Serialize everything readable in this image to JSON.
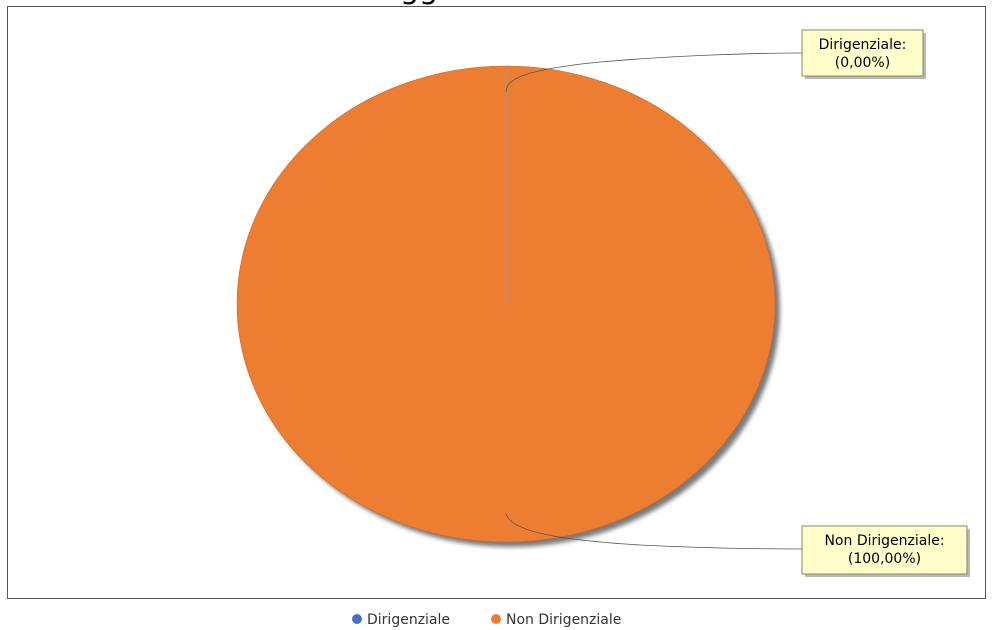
{
  "chart_data": {
    "type": "pie",
    "title": "",
    "categories": [
      "Dirigenziale",
      "Non Dirigenziale"
    ],
    "values": [
      0,
      100
    ],
    "colors": [
      "#4472c4",
      "#ed7d31"
    ],
    "labels": [
      {
        "name": "Dirigenziale:",
        "pct": "(0,00%)"
      },
      {
        "name": "Non Dirigenziale:",
        "pct": "(100,00%)"
      }
    ],
    "legend": {
      "placement": "bottom",
      "items": [
        "Dirigenziale",
        "Non Dirigenziale"
      ]
    }
  }
}
